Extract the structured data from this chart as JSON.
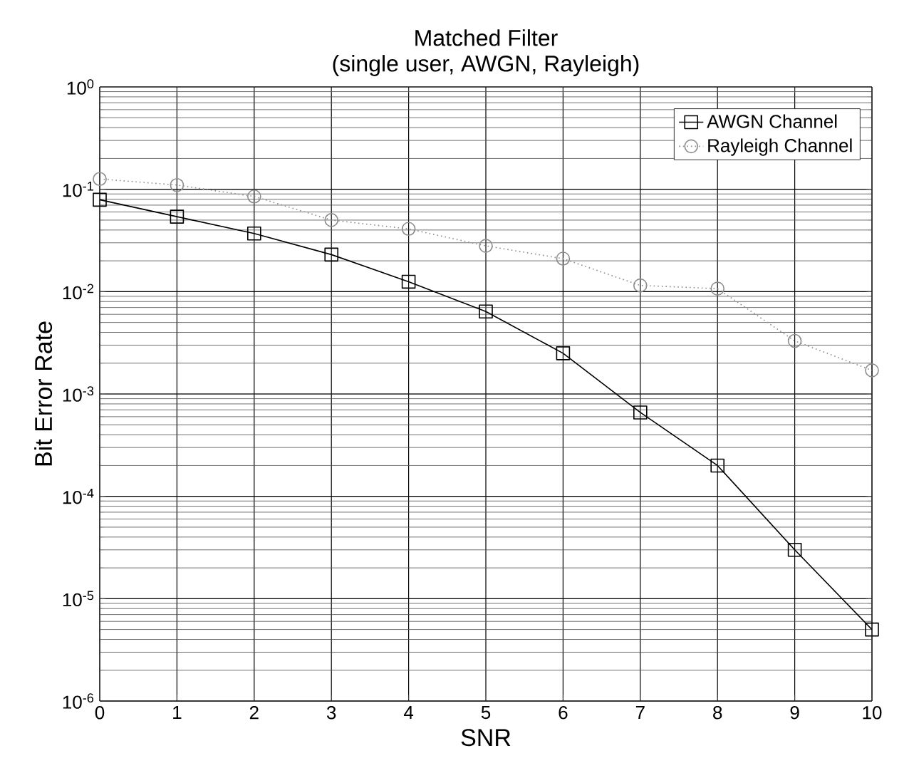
{
  "chart_data": {
    "type": "line",
    "title": "Matched Filter",
    "subtitle": "(single user, AWGN, Rayleigh)",
    "xlabel": "SNR",
    "ylabel": "Bit Error Rate",
    "x": [
      0,
      1,
      2,
      3,
      4,
      5,
      6,
      7,
      8,
      9,
      10
    ],
    "series": [
      {
        "name": "AWGN Channel",
        "color": "#000000",
        "marker": "square",
        "line_style": "solid",
        "values": [
          0.079,
          0.054,
          0.037,
          0.023,
          0.0125,
          0.0064,
          0.0025,
          0.00066,
          0.0002,
          3e-05,
          5e-06
        ]
      },
      {
        "name": "Rayleigh Channel",
        "color": "#8c8c8c",
        "marker": "circle",
        "line_style": "dotted",
        "values": [
          0.126,
          0.11,
          0.085,
          0.05,
          0.041,
          0.028,
          0.021,
          0.0115,
          0.0107,
          0.0033,
          0.0017
        ]
      }
    ],
    "log": "y",
    "xlim": [
      0,
      10
    ],
    "ylim": [
      1e-06,
      1
    ],
    "xticks": [
      0,
      1,
      2,
      3,
      4,
      5,
      6,
      7,
      8,
      9,
      10
    ],
    "yticks": [
      {
        "value": 1e-06,
        "label": "10$^{-6}$"
      },
      {
        "value": 1e-05,
        "label": "10$^{-5}$"
      },
      {
        "value": 0.0001,
        "label": "10$^{-4}$"
      },
      {
        "value": 0.001,
        "label": "10$^{-3}$"
      },
      {
        "value": 0.01,
        "label": "10$^{-2}$"
      },
      {
        "value": 0.1,
        "label": "10$^{-1}$"
      },
      {
        "value": 1,
        "label": "10$^{0}$"
      }
    ],
    "grid": true,
    "legend": "top right"
  }
}
